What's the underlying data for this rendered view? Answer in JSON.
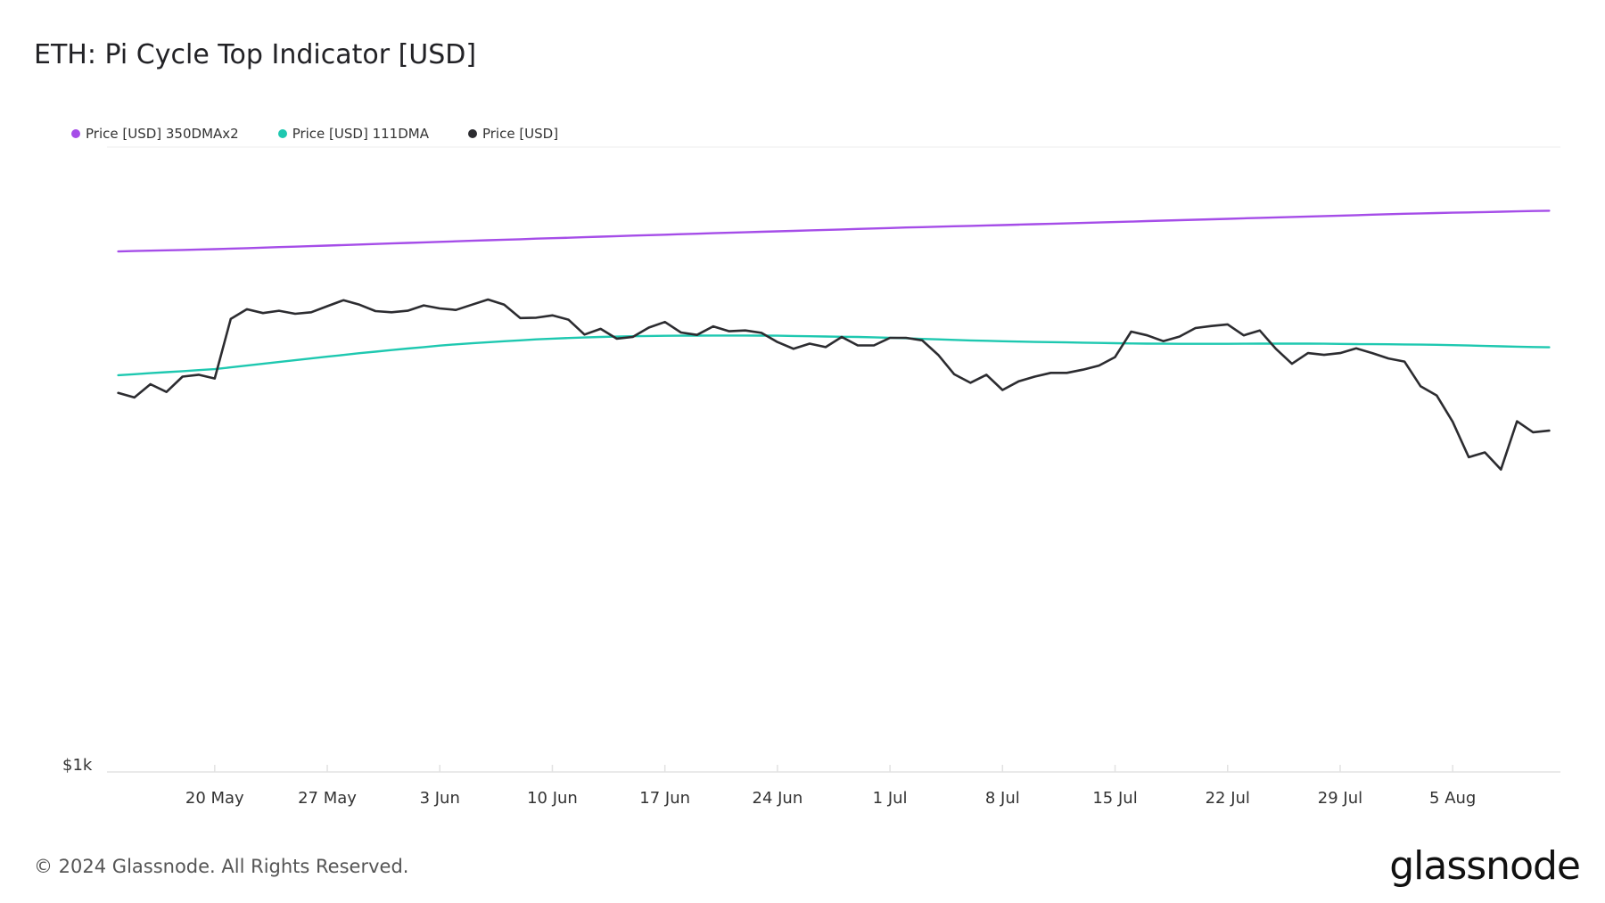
{
  "title": "ETH: Pi Cycle Top Indicator [USD]",
  "footer": "© 2024 Glassnode. All Rights Reserved.",
  "logo": "glassnode",
  "legend": [
    {
      "label": "Price [USD] 350DMAx2",
      "color": "#a54de8"
    },
    {
      "label": "Price [USD] 111DMA",
      "color": "#1ec8b0"
    },
    {
      "label": "Price [USD]",
      "color": "#2c2c30"
    }
  ],
  "chart_data": {
    "type": "line",
    "x_ticks": [
      {
        "label": "20 May",
        "day": 6
      },
      {
        "label": "27 May",
        "day": 13
      },
      {
        "label": "3 Jun",
        "day": 20
      },
      {
        "label": "10 Jun",
        "day": 27
      },
      {
        "label": "17 Jun",
        "day": 34
      },
      {
        "label": "24 Jun",
        "day": 41
      },
      {
        "label": "1 Jul",
        "day": 48
      },
      {
        "label": "8 Jul",
        "day": 55
      },
      {
        "label": "15 Jul",
        "day": 62
      },
      {
        "label": "22 Jul",
        "day": 69
      },
      {
        "label": "29 Jul",
        "day": 76
      },
      {
        "label": "5 Aug",
        "day": 83
      }
    ],
    "y_ticks": [
      {
        "label": "$1k",
        "value": 1000
      }
    ],
    "y_scale": "log",
    "ylim": [
      1000,
      7000
    ],
    "xlim": [
      -0.7,
      89.7
    ],
    "series": [
      {
        "name": "Price [USD] 350DMAx2",
        "color": "#a54de8",
        "start_day": 0,
        "values": [
          5058,
          5064,
          5070,
          5076,
          5082,
          5088,
          5094,
          5102,
          5110,
          5118,
          5126,
          5134,
          5142,
          5151,
          5160,
          5168,
          5176,
          5185,
          5194,
          5202,
          5211,
          5220,
          5228,
          5237,
          5246,
          5254,
          5263,
          5271,
          5279,
          5287,
          5296,
          5304,
          5313,
          5321,
          5329,
          5337,
          5345,
          5353,
          5361,
          5369,
          5377,
          5385,
          5393,
          5401,
          5409,
          5417,
          5425,
          5433,
          5441,
          5449,
          5456,
          5463,
          5470,
          5477,
          5484,
          5491,
          5498,
          5505,
          5512,
          5520,
          5527,
          5535,
          5543,
          5551,
          5559,
          5567,
          5575,
          5583,
          5591,
          5599,
          5607,
          5615,
          5623,
          5631,
          5639,
          5647,
          5655,
          5663,
          5671,
          5679,
          5687,
          5694,
          5700,
          5706,
          5712,
          5718,
          5724,
          5730,
          5736,
          5742
        ]
      },
      {
        "name": "Price [USD] 111DMA",
        "color": "#1ec8b0",
        "start_day": 0,
        "values": [
          3440,
          3451,
          3462,
          3473,
          3484,
          3495,
          3506,
          3525,
          3545,
          3565,
          3585,
          3605,
          3625,
          3645,
          3664,
          3684,
          3702,
          3720,
          3738,
          3755,
          3772,
          3787,
          3800,
          3812,
          3824,
          3835,
          3846,
          3855,
          3862,
          3869,
          3875,
          3880,
          3884,
          3887,
          3889,
          3891,
          3892,
          3893,
          3893,
          3893,
          3892,
          3890,
          3887,
          3884,
          3881,
          3878,
          3875,
          3871,
          3866,
          3860,
          3852,
          3846,
          3840,
          3834,
          3829,
          3824,
          3820,
          3816,
          3813,
          3810,
          3807,
          3804,
          3801,
          3798,
          3796,
          3794,
          3793,
          3793,
          3793,
          3793,
          3794,
          3795,
          3795,
          3796,
          3795,
          3794,
          3792,
          3790,
          3789,
          3788,
          3786,
          3784,
          3782,
          3778,
          3773,
          3768,
          3764,
          3760,
          3756,
          3753
        ]
      },
      {
        "name": "Price [USD]",
        "color": "#2c2c30",
        "start_day": 0,
        "values": [
          3255,
          3210,
          3345,
          3265,
          3425,
          3445,
          3405,
          4100,
          4225,
          4175,
          4205,
          4165,
          4185,
          4265,
          4345,
          4285,
          4200,
          4185,
          4205,
          4275,
          4235,
          4215,
          4285,
          4355,
          4285,
          4110,
          4115,
          4145,
          4090,
          3905,
          3975,
          3855,
          3875,
          3990,
          4060,
          3930,
          3900,
          4005,
          3945,
          3955,
          3925,
          3815,
          3735,
          3795,
          3755,
          3875,
          3775,
          3775,
          3865,
          3865,
          3835,
          3665,
          3450,
          3360,
          3445,
          3285,
          3375,
          3425,
          3465,
          3465,
          3500,
          3545,
          3640,
          3940,
          3895,
          3825,
          3880,
          3985,
          4010,
          4030,
          3895,
          3955,
          3735,
          3565,
          3685,
          3665,
          3685,
          3740,
          3685,
          3625,
          3590,
          3325,
          3230,
          2975,
          2665,
          2705,
          2565,
          2980,
          2880,
          2895
        ]
      }
    ]
  }
}
